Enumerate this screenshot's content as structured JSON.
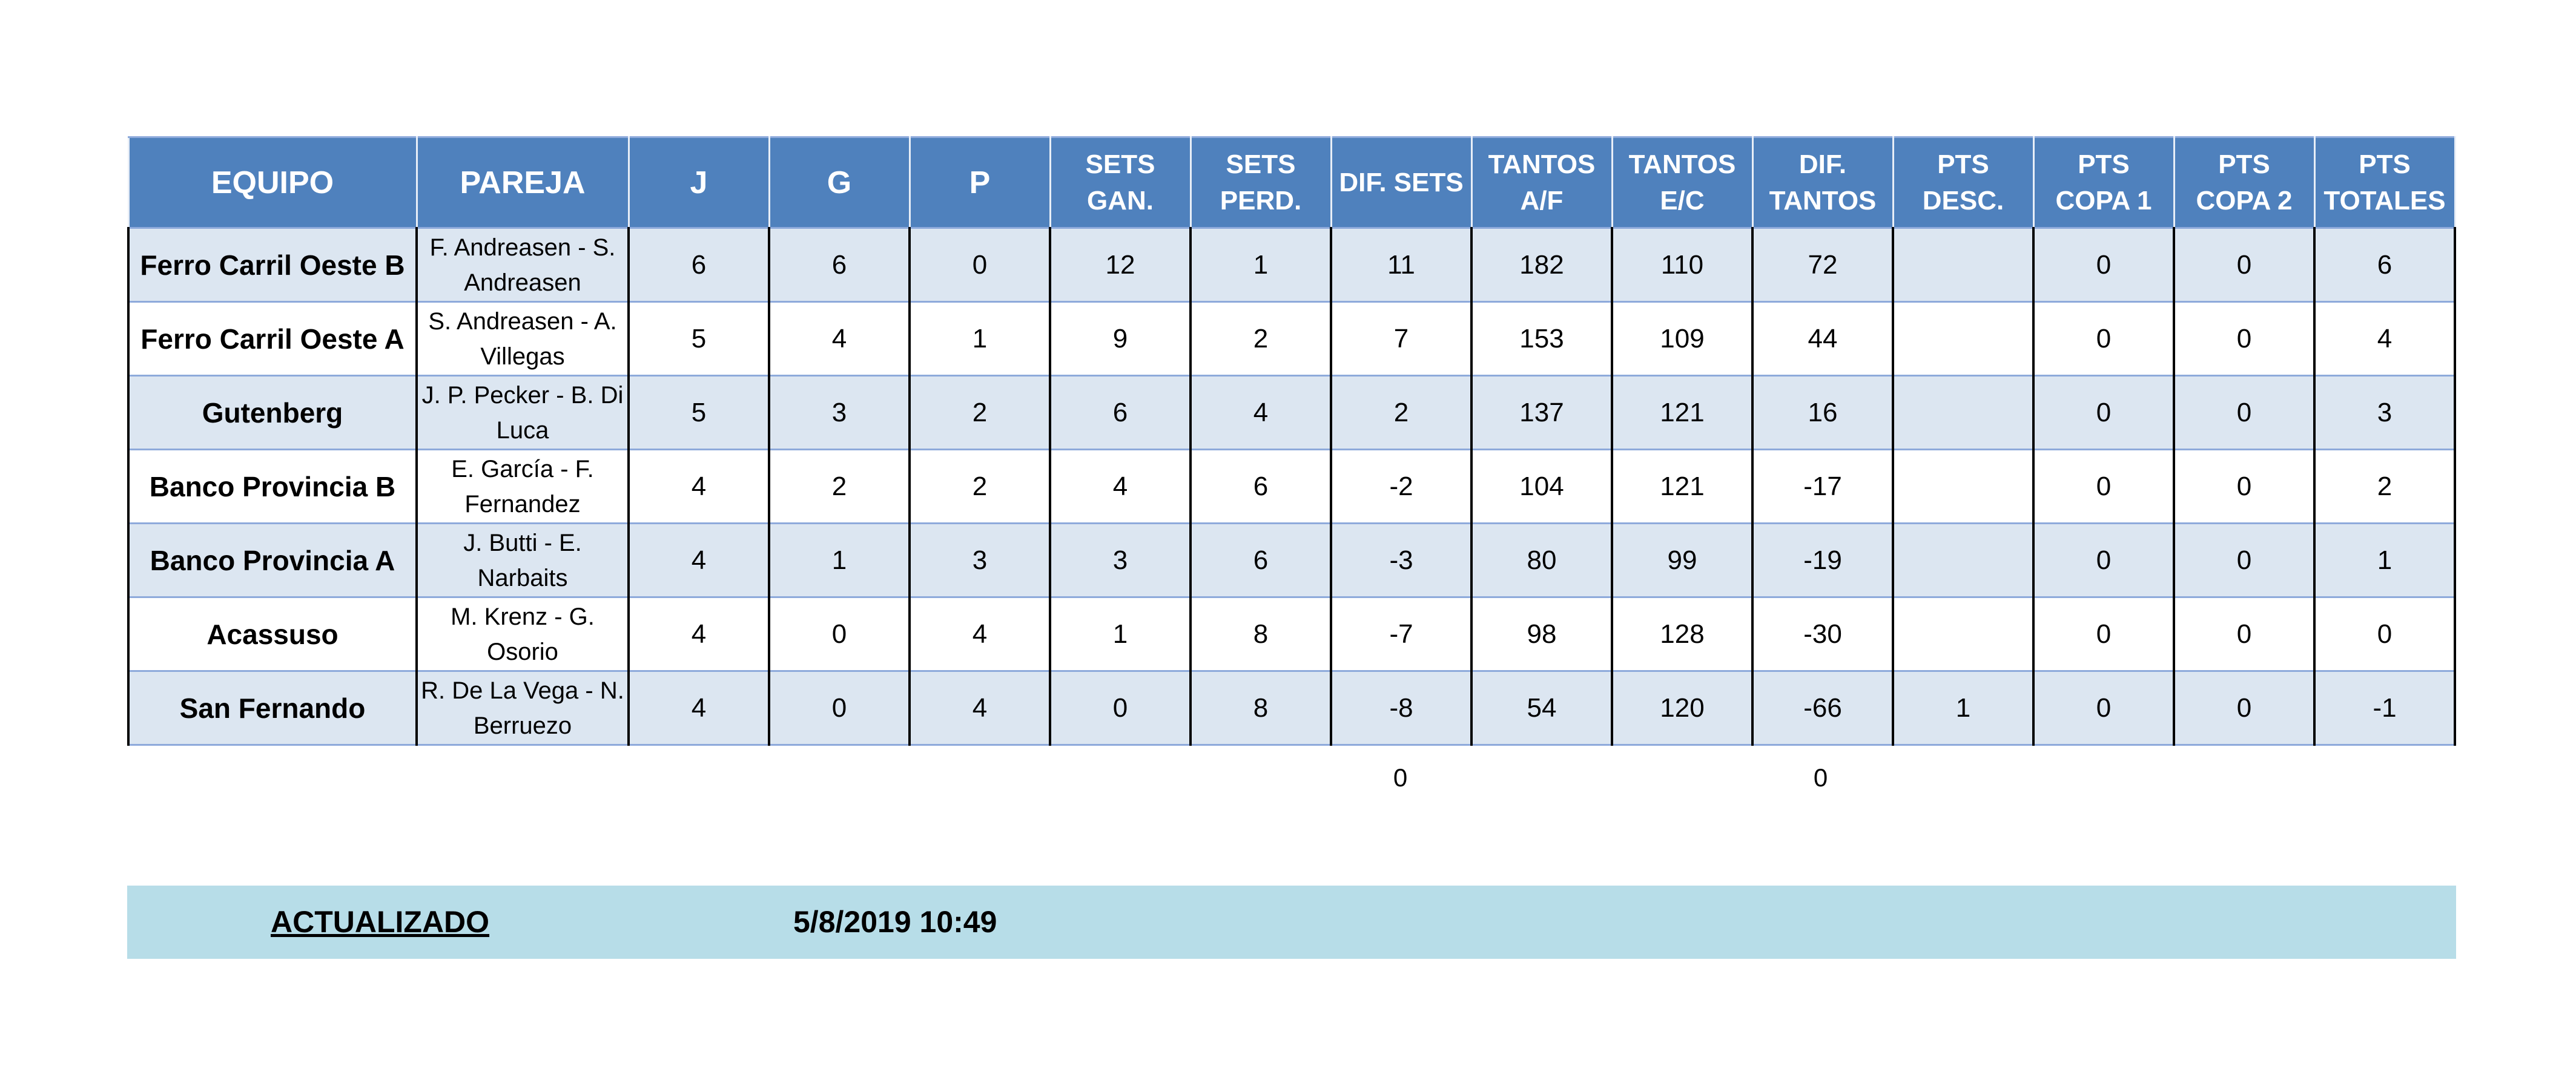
{
  "table": {
    "headers": [
      "EQUIPO",
      "PAREJA",
      "J",
      "G",
      "P",
      "SETS GAN.",
      "SETS PERD.",
      "DIF. SETS",
      "TANTOS A/F",
      "TANTOS E/C",
      "DIF. TANTOS",
      "PTS DESC.",
      "PTS COPA 1",
      "PTS COPA 2",
      "PTS TOTALES"
    ],
    "rows": [
      {
        "equipo": "Ferro Carril Oeste B",
        "pareja": "F. Andreasen - S. Andreasen",
        "j": "6",
        "g": "6",
        "p": "0",
        "sets_gan": "12",
        "sets_perd": "1",
        "dif_sets": "11",
        "tantos_af": "182",
        "tantos_ec": "110",
        "dif_tantos": "72",
        "pts_desc": "",
        "pts_copa1": "0",
        "pts_copa2": "0",
        "pts_totales": "6"
      },
      {
        "equipo": "Ferro Carril Oeste A",
        "pareja": "S. Andreasen - A. Villegas",
        "j": "5",
        "g": "4",
        "p": "1",
        "sets_gan": "9",
        "sets_perd": "2",
        "dif_sets": "7",
        "tantos_af": "153",
        "tantos_ec": "109",
        "dif_tantos": "44",
        "pts_desc": "",
        "pts_copa1": "0",
        "pts_copa2": "0",
        "pts_totales": "4"
      },
      {
        "equipo": "Gutenberg",
        "pareja": "J. P. Pecker - B. Di Luca",
        "j": "5",
        "g": "3",
        "p": "2",
        "sets_gan": "6",
        "sets_perd": "4",
        "dif_sets": "2",
        "tantos_af": "137",
        "tantos_ec": "121",
        "dif_tantos": "16",
        "pts_desc": "",
        "pts_copa1": "0",
        "pts_copa2": "0",
        "pts_totales": "3"
      },
      {
        "equipo": "Banco Provincia B",
        "pareja": "E. García - F. Fernandez",
        "j": "4",
        "g": "2",
        "p": "2",
        "sets_gan": "4",
        "sets_perd": "6",
        "dif_sets": "-2",
        "tantos_af": "104",
        "tantos_ec": "121",
        "dif_tantos": "-17",
        "pts_desc": "",
        "pts_copa1": "0",
        "pts_copa2": "0",
        "pts_totales": "2"
      },
      {
        "equipo": "Banco Provincia A",
        "pareja": "J. Butti - E. Narbaits",
        "j": "4",
        "g": "1",
        "p": "3",
        "sets_gan": "3",
        "sets_perd": "6",
        "dif_sets": "-3",
        "tantos_af": "80",
        "tantos_ec": "99",
        "dif_tantos": "-19",
        "pts_desc": "",
        "pts_copa1": "0",
        "pts_copa2": "0",
        "pts_totales": "1"
      },
      {
        "equipo": "Acassuso",
        "pareja": "M. Krenz - G. Osorio",
        "j": "4",
        "g": "0",
        "p": "4",
        "sets_gan": "1",
        "sets_perd": "8",
        "dif_sets": "-7",
        "tantos_af": "98",
        "tantos_ec": "128",
        "dif_tantos": "-30",
        "pts_desc": "",
        "pts_copa1": "0",
        "pts_copa2": "0",
        "pts_totales": "0"
      },
      {
        "equipo": "San Fernando",
        "pareja": "R. De La Vega - N. Berruezo",
        "j": "4",
        "g": "0",
        "p": "4",
        "sets_gan": "0",
        "sets_perd": "8",
        "dif_sets": "-8",
        "tantos_af": "54",
        "tantos_ec": "120",
        "dif_tantos": "-66",
        "pts_desc": "1",
        "pts_copa1": "0",
        "pts_copa2": "0",
        "pts_totales": "-1"
      }
    ]
  },
  "totals": {
    "dif_sets": "0",
    "dif_tantos": "0"
  },
  "update": {
    "label": "ACTUALIZADO",
    "value": "5/8/2019 10:49"
  },
  "colors": {
    "header_bg": "#4f81bd",
    "band_row": "#dce6f1",
    "update_bar": "#b7dde8"
  }
}
